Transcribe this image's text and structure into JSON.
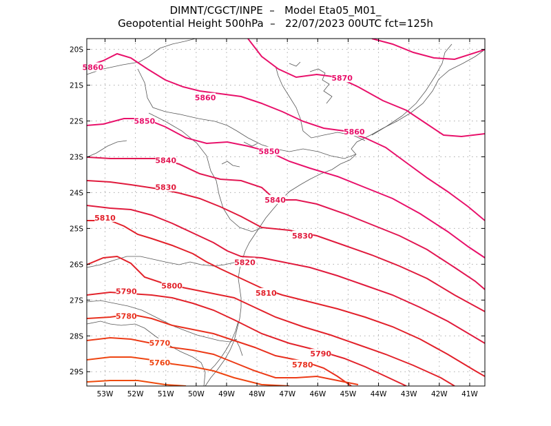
{
  "header": {
    "line1": "DIMNT/CGCT/INPE  –   Model Eta05_M01_",
    "line2": "Geopotential Height 500hPa  –   22/07/2023 00UTC fct=125h"
  },
  "map": {
    "lon_range": [
      -53.6,
      -40.5
    ],
    "lat_range": [
      -29.4,
      -19.7
    ],
    "lon_ticks": [
      "53W",
      "52W",
      "51W",
      "50W",
      "49W",
      "48W",
      "47W",
      "46W",
      "45W",
      "44W",
      "43W",
      "42W",
      "41W"
    ],
    "lat_ticks": [
      "20S",
      "21S",
      "22S",
      "23S",
      "24S",
      "25S",
      "26S",
      "27S",
      "28S",
      "29S"
    ]
  },
  "contours": {
    "variable": "Geopotential Height 500hPa",
    "labels": [
      {
        "text": "5870",
        "color": "#e8106a",
        "lon": -45.2,
        "lat": -20.8
      },
      {
        "text": "5860",
        "color": "#e8106a",
        "lon": -53.4,
        "lat": -20.5
      },
      {
        "text": "5860",
        "color": "#e8106a",
        "lon": -49.7,
        "lat": -21.35
      },
      {
        "text": "5860",
        "color": "#e8106a",
        "lon": -44.8,
        "lat": -22.3
      },
      {
        "text": "5850",
        "color": "#e8106a",
        "lon": -51.7,
        "lat": -22.0
      },
      {
        "text": "5850",
        "color": "#e8106a",
        "lon": -47.6,
        "lat": -22.85
      },
      {
        "text": "5840",
        "color": "#e21652",
        "lon": -51.0,
        "lat": -23.1
      },
      {
        "text": "5840",
        "color": "#e21652",
        "lon": -47.4,
        "lat": -24.2
      },
      {
        "text": "5830",
        "color": "#e01a3c",
        "lon": -51.0,
        "lat": -23.85
      },
      {
        "text": "5830",
        "color": "#e01a3c",
        "lon": -46.5,
        "lat": -25.2
      },
      {
        "text": "5820",
        "color": "#e01a3c",
        "lon": -48.4,
        "lat": -25.95
      },
      {
        "text": "5810",
        "color": "#e2202a",
        "lon": -53.0,
        "lat": -24.7
      },
      {
        "text": "5810",
        "color": "#e2202a",
        "lon": -47.7,
        "lat": -26.8
      },
      {
        "text": "5800",
        "color": "#e2222a",
        "lon": -50.8,
        "lat": -26.6
      },
      {
        "text": "5790",
        "color": "#e2222a",
        "lon": -52.3,
        "lat": -26.75
      },
      {
        "text": "5790",
        "color": "#e2222a",
        "lon": -45.9,
        "lat": -28.5
      },
      {
        "text": "5780",
        "color": "#e8301e",
        "lon": -52.3,
        "lat": -27.45
      },
      {
        "text": "5780",
        "color": "#e8301e",
        "lon": -46.5,
        "lat": -28.8
      },
      {
        "text": "5770",
        "color": "#ec3a16",
        "lon": -51.2,
        "lat": -28.2
      },
      {
        "text": "5760",
        "color": "#ee4410",
        "lon": -51.2,
        "lat": -28.75
      }
    ]
  }
}
